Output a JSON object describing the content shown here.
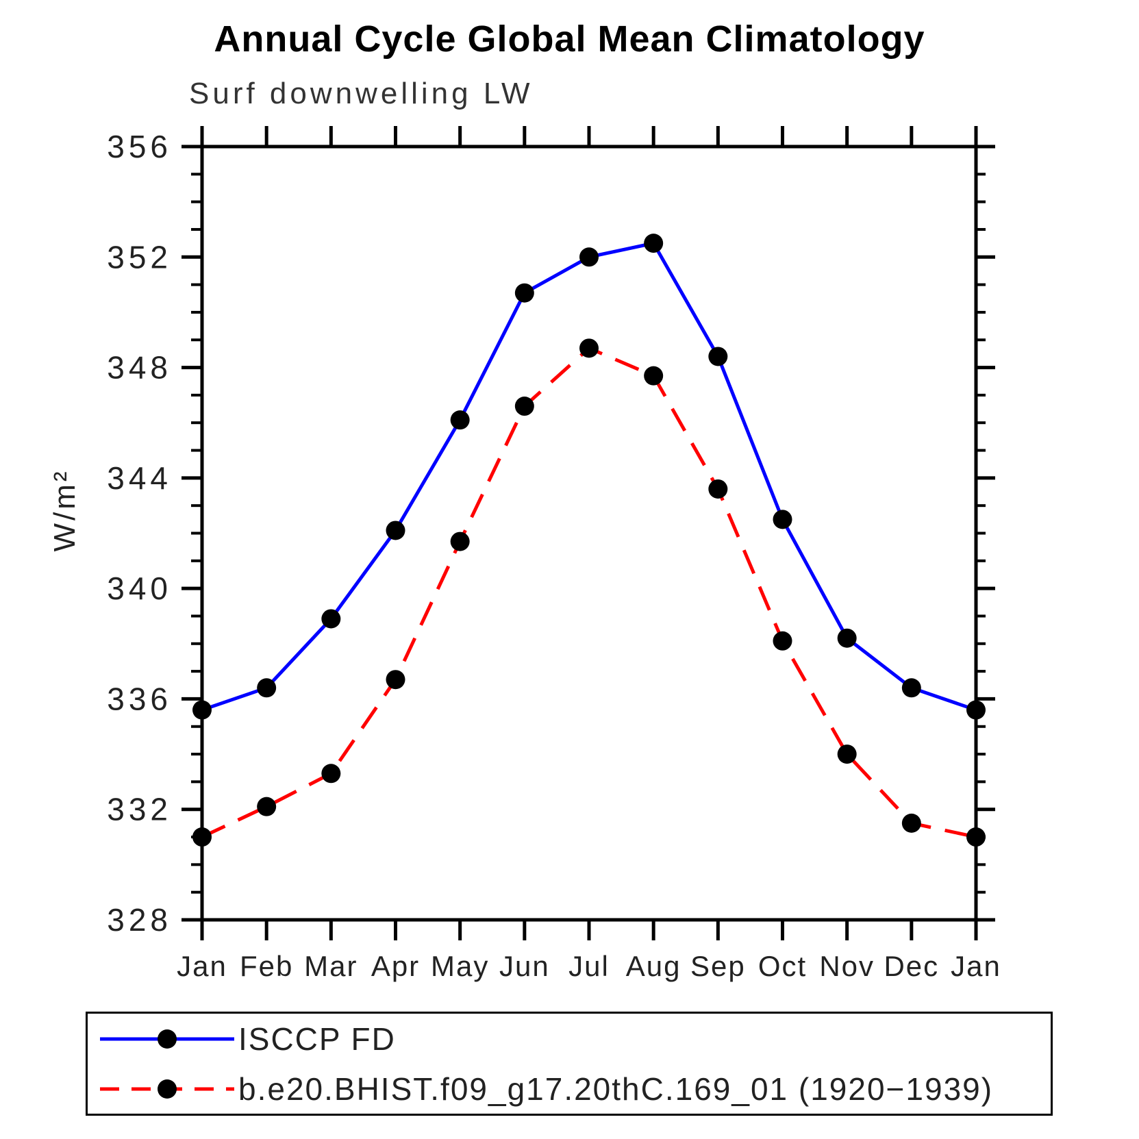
{
  "page": {
    "background": "#ffffff"
  },
  "chart_data": {
    "type": "line",
    "title": "Annual Cycle Global Mean Climatology",
    "subtitle": "Surf downwelling LW",
    "ylabel": "W/m²",
    "xlabel": "",
    "x_categories": [
      "Jan",
      "Feb",
      "Mar",
      "Apr",
      "May",
      "Jun",
      "Jul",
      "Aug",
      "Sep",
      "Oct",
      "Nov",
      "Dec",
      "Jan"
    ],
    "ylim": [
      328,
      356
    ],
    "ytick_major_labels": [
      "328",
      "332",
      "336",
      "340",
      "344",
      "348",
      "352",
      "356"
    ],
    "ytick_major_step": 4,
    "ytick_minor_step": 1,
    "grid": false,
    "axis_color": "#000000",
    "legend_position": "bottom-left",
    "series": [
      {
        "name": "ISCCP FD",
        "color": "#0000ff",
        "line_style": "solid",
        "marker": "filled-circle",
        "marker_color": "#000000",
        "values": [
          335.6,
          336.4,
          338.9,
          342.1,
          346.1,
          350.7,
          352.0,
          352.5,
          348.4,
          342.5,
          338.2,
          336.4,
          335.6
        ]
      },
      {
        "name": "b.e20.BHIST.f09_g17.20thC.169_01 (1920−1939)",
        "color": "#ff0000",
        "line_style": "dashed",
        "marker": "filled-circle",
        "marker_color": "#000000",
        "values": [
          331.0,
          332.1,
          333.3,
          336.7,
          341.7,
          346.6,
          348.7,
          347.7,
          343.6,
          338.1,
          334.0,
          331.5,
          331.0
        ]
      }
    ]
  }
}
